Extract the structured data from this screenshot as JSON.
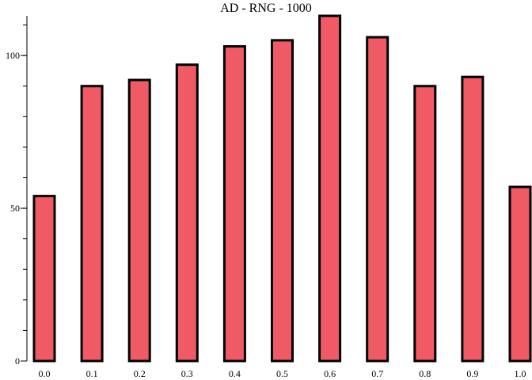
{
  "chart_data": {
    "type": "bar",
    "title": "AD - RNG - 1000",
    "xlabel": "",
    "ylabel": "",
    "categories": [
      "0.0",
      "0.1",
      "0.2",
      "0.3",
      "0.4",
      "0.5",
      "0.6",
      "0.7",
      "0.8",
      "0.9",
      "1.0"
    ],
    "values": [
      54,
      90,
      92,
      97,
      103,
      105,
      113,
      106,
      90,
      93,
      57
    ],
    "ylim": [
      0,
      113
    ],
    "yticks_labeled": [
      0,
      50,
      100
    ],
    "yticks_minor_step": 10,
    "bar_color": "#f05a64",
    "edge_color": "#000000",
    "grid": false,
    "legend": "none"
  }
}
